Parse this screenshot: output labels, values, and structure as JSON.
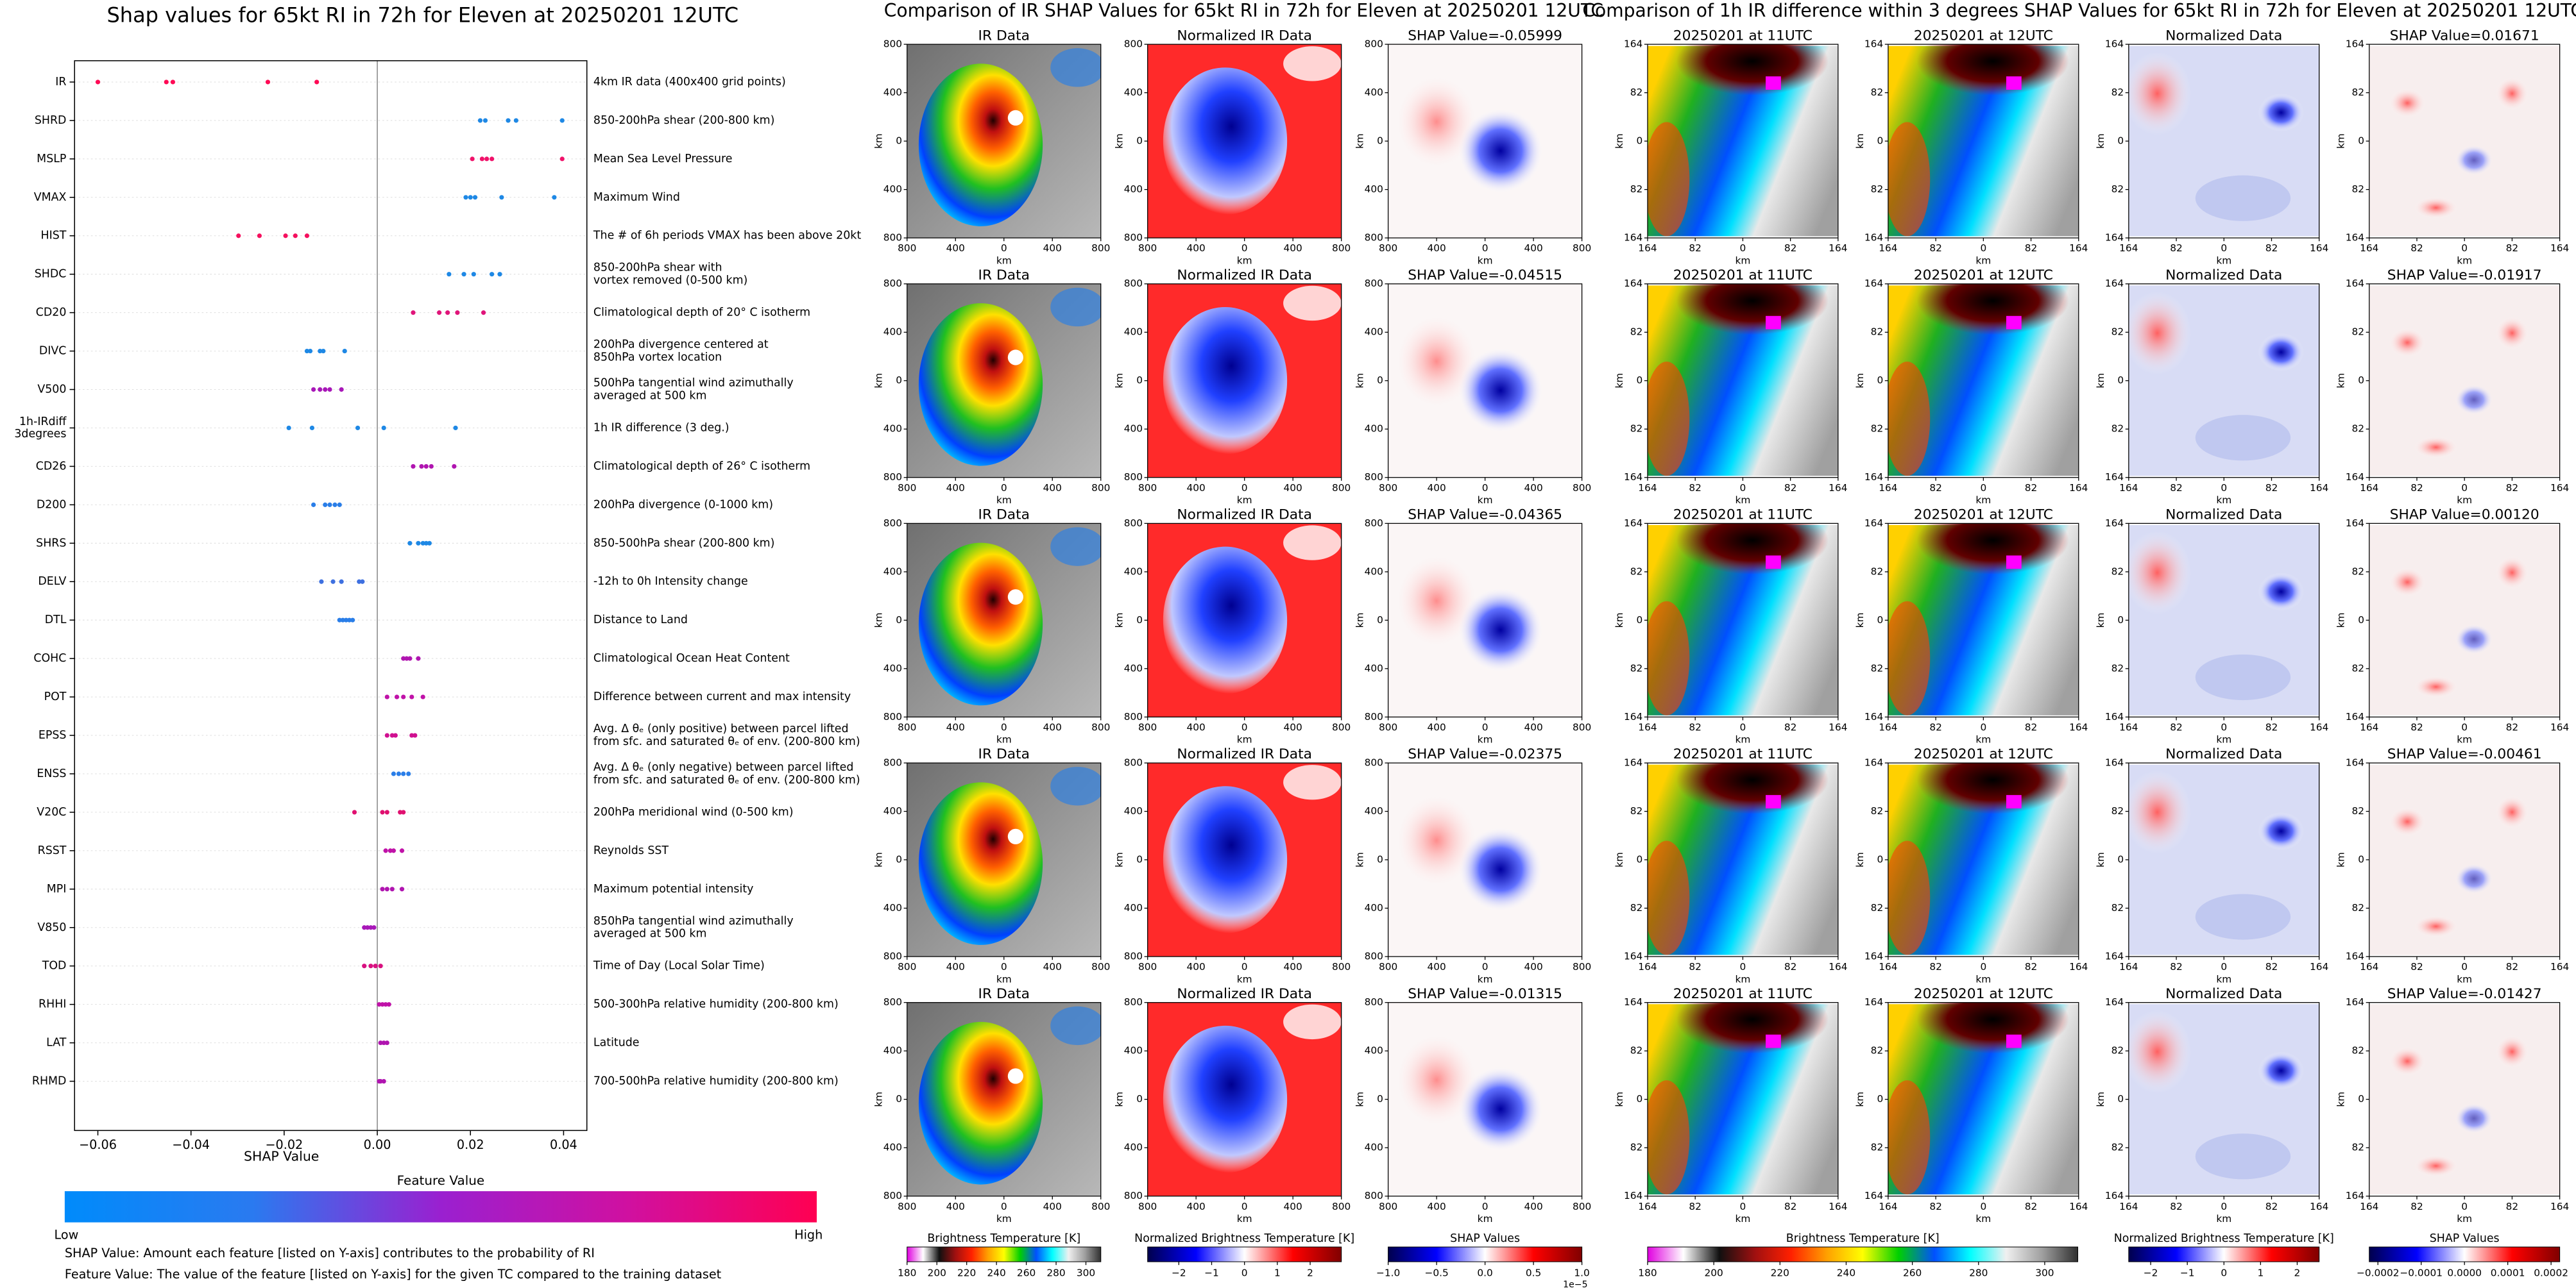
{
  "chart_data": [
    {
      "type": "strip",
      "title": "Shap values for 65kt RI in 72h for Eleven at 20250201 12UTC",
      "xlabel": "SHAP Value",
      "xlim": [
        -0.065,
        0.045
      ],
      "xticks": [
        {
          "value": -0.06,
          "label": "−0.06"
        },
        {
          "value": -0.04,
          "label": "−0.04"
        },
        {
          "value": -0.02,
          "label": "−0.02"
        },
        {
          "value": 0,
          "label": "0.00"
        },
        {
          "value": 0.02,
          "label": "0.02"
        },
        {
          "value": 0.04,
          "label": "0.04"
        }
      ],
      "categories": [
        "IR",
        "SHRD",
        "MSLP",
        "VMAX",
        "HIST",
        "SHDC",
        "CD20",
        "DIVC",
        "V500",
        [
          "1h-IRdiff",
          "3degrees"
        ],
        "CD26",
        "D200",
        "SHRS",
        "DELV",
        "DTL",
        "COHC",
        "POT",
        "EPSS",
        "ENSS",
        "V20C",
        "RSST",
        "MPI",
        "V850",
        "TOD",
        "RHHI",
        "LAT",
        "RHMD"
      ],
      "descriptions": [
        "4km IR data (400x400 grid points)",
        "850-200hPa shear (200-800 km)",
        "Mean Sea Level Pressure",
        "Maximum Wind",
        "The # of 6h periods VMAX has been above 20kt",
        [
          "850-200hPa shear with",
          "vortex removed (0-500 km)"
        ],
        "Climatological depth of 20° C isotherm",
        [
          "200hPa divergence centered at",
          "850hPa vortex location"
        ],
        [
          "500hPa tangential wind azimuthally",
          "averaged at 500 km"
        ],
        "1h IR difference (3 deg.)",
        "Climatological depth of 26° C isotherm",
        "200hPa divergence (0-1000 km)",
        "850-500hPa shear (200-800 km)",
        "-12h to 0h Intensity change",
        "Distance to Land",
        "Climatological Ocean Heat Content",
        "Difference between current and max intensity",
        [
          "Avg. Δ θₑ (only positive) between parcel lifted",
          "from sfc. and saturated θₑ of env. (200-800 km)"
        ],
        [
          "Avg. Δ θₑ (only negative) between parcel lifted",
          "from sfc. and saturated θₑ of env. (200-800 km)"
        ],
        "200hPa meridional wind (0-500 km)",
        "Reynolds SST",
        "Maximum potential intensity",
        [
          "850hPa tangential wind azimuthally",
          "averaged at 500 km"
        ],
        "Time of Day (Local Solar Time)",
        "500-300hPa relative humidity (200-800 km)",
        "Latitude",
        "700-500hPa relative humidity (200-800 km)"
      ],
      "values": [
        [
          -0.06,
          -0.0453,
          -0.0439,
          -0.0235,
          -0.013
        ],
        [
          0.0221,
          0.0232,
          0.0281,
          0.0298,
          0.0397
        ],
        [
          0.0204,
          0.0225,
          0.0235,
          0.0246,
          0.0397
        ],
        [
          0.019,
          0.02,
          0.021,
          0.0267,
          0.038
        ],
        [
          -0.0298,
          -0.0253,
          -0.0197,
          -0.0176,
          -0.0151
        ],
        [
          0.0154,
          0.0186,
          0.0207,
          0.0246,
          0.0263
        ],
        [
          0.0077,
          0.0133,
          0.0151,
          0.0172,
          0.0228
        ],
        [
          -0.0151,
          -0.0144,
          -0.0123,
          -0.0116,
          -0.007
        ],
        [
          -0.0137,
          -0.0123,
          -0.0112,
          -0.0102,
          -0.0077
        ],
        [
          -0.019,
          -0.014,
          -0.0042,
          0.0014,
          0.0168
        ],
        [
          0.0077,
          0.0095,
          0.0105,
          0.0116,
          0.0165
        ],
        [
          -0.0137,
          -0.0112,
          -0.0102,
          -0.0091,
          -0.0081
        ],
        [
          0.007,
          0.0088,
          0.0098,
          0.0105,
          0.0112
        ],
        [
          -0.012,
          -0.0095,
          -0.0077,
          -0.0039,
          -0.0032
        ],
        [
          -0.0081,
          -0.0074,
          -0.0067,
          -0.006,
          -0.0053
        ],
        [
          0.0056,
          0.0063,
          0.007,
          0.0088
        ],
        [
          0.0021,
          0.0042,
          0.0056,
          0.0074,
          0.0098
        ],
        [
          0.0021,
          0.0032,
          0.0039,
          0.0074,
          0.0081
        ],
        [
          0.0035,
          0.0046,
          0.0056,
          0.0067
        ],
        [
          -0.0049,
          0.0011,
          0.0021,
          0.0049,
          0.0056
        ],
        [
          0.0018,
          0.0028,
          0.0035,
          0.0053
        ],
        [
          0.0011,
          0.0021,
          0.0032,
          0.0053
        ],
        [
          -0.0028,
          -0.0021,
          -0.0014,
          -0.0007
        ],
        [
          -0.0028,
          -0.0014,
          -0.0004,
          0.0007
        ],
        [
          0.0004,
          0.0011,
          0.0018,
          0.0025
        ],
        [
          0.0007,
          0.0014,
          0.0021
        ],
        [
          0.0004,
          0.0007,
          0.0014
        ]
      ],
      "colors": [
        "#ff0a55",
        "#1e88e5",
        "#f0126a",
        "#1e88e5",
        "#f5105e",
        "#1e88e5",
        "#e0157a",
        "#1e88e5",
        "#a818b8",
        "#1e88e5",
        "#b015b0",
        "#2a7ee8",
        "#1e88e5",
        "#3e70e0",
        "#2a7ee8",
        "#b015b0",
        "#c012a8",
        "#d01090",
        "#2a7ee8",
        "#e01070",
        "#c012a8",
        "#b015b0",
        "#a818b8",
        "#d81080",
        "#c012a8",
        "#b015b0",
        "#b015b0"
      ],
      "colorbar": {
        "title": "Feature Value",
        "low_label": "Low",
        "high_label": "High",
        "colors": [
          "#008bfb",
          "#2a7af0",
          "#9a20d0",
          "#d010a0",
          "#ff0052"
        ]
      },
      "notes": [
        "SHAP Value: Amount each feature [listed on Y-axis] contributes to the probability of RI",
        "Feature Value: The value of the feature [listed on Y-axis] for the given TC compared to the training dataset"
      ]
    },
    {
      "type": "image-grid",
      "title": "Comparison of IR SHAP Values for 65kt RI in 72h for Eleven at 20250201 12UTC",
      "panel_titles": [
        "IR Data",
        "Normalized IR Data"
      ],
      "shap_titles": [
        "SHAP Value=-0.05999",
        "SHAP Value=-0.04515",
        "SHAP Value=-0.04365",
        "SHAP Value=-0.02375",
        "SHAP Value=-0.01315"
      ],
      "xlabel": "km",
      "ylabel": "km",
      "xlim": [
        -800,
        800
      ],
      "ylim": [
        -800,
        800
      ],
      "xticks": [
        {
          "value": -800,
          "label": "800"
        },
        {
          "value": -400,
          "label": "400"
        },
        0,
        400,
        800
      ],
      "yticks": [
        {
          "value": -800,
          "label": "800"
        },
        {
          "value": -400,
          "label": "400"
        },
        0,
        400,
        800
      ],
      "colorbars": [
        {
          "label": "Brightness Temperature [K]",
          "lim": [
            180,
            310
          ],
          "ticks": [
            180,
            200,
            220,
            240,
            260,
            280,
            300
          ],
          "colors": [
            "#e000e0",
            "#ffffff",
            "#101010",
            "#a01010",
            "#ff2000",
            "#ffa000",
            "#ffff00",
            "#00d000",
            "#0050ff",
            "#00ffff",
            "#f0f0f0",
            "#a0a0a0",
            "#303030"
          ]
        },
        {
          "label": "Normalized Brightness Temperature [K]",
          "lim": [
            -2.95,
            2.95
          ],
          "ticks": [
            {
              "value": -2,
              "label": "−2"
            },
            {
              "value": -1,
              "label": "−1"
            },
            0,
            1,
            2
          ],
          "colors": [
            "#00004d",
            "#0000ff",
            "#ffffff",
            "#ff0000",
            "#800000"
          ]
        },
        {
          "label": "SHAP Values",
          "lim": [
            -1e-05,
            1e-05
          ],
          "ticks": [
            {
              "value": -1e-05,
              "label": "−1.0"
            },
            {
              "value": -5e-06,
              "label": "−0.5"
            },
            {
              "value": 0,
              "label": "0.0"
            },
            {
              "value": 5e-06,
              "label": "0.5"
            },
            {
              "value": 1e-05,
              "label": "1.0"
            }
          ],
          "offset_text": "1e−5",
          "colors": [
            "#00004d",
            "#0000ff",
            "#ffffff",
            "#ff0000",
            "#800000"
          ]
        }
      ]
    },
    {
      "type": "image-grid",
      "title": "Comparison of 1h IR difference within 3 degrees SHAP Values for 65kt RI in 72h for Eleven at 20250201 12UTC",
      "panel_titles": [
        "20250201 at 11UTC",
        "20250201 at 12UTC",
        "Normalized Data"
      ],
      "shap_titles": [
        "SHAP Value=0.01671",
        "SHAP Value=-0.01917",
        "SHAP Value=0.00120",
        "SHAP Value=-0.00461",
        "SHAP Value=-0.01427"
      ],
      "xlabel": "km",
      "ylabel": "km",
      "xlim": [
        -164,
        164
      ],
      "ylim": [
        -164,
        164
      ],
      "xticks": [
        {
          "value": -164,
          "label": "164"
        },
        {
          "value": -82,
          "label": "82"
        },
        0,
        82,
        164
      ],
      "yticks": [
        {
          "value": -164,
          "label": "164"
        },
        {
          "value": -82,
          "label": "82"
        },
        0,
        82,
        164
      ],
      "colorbars": [
        {
          "label": "Brightness Temperature [K]",
          "lim": [
            180,
            310
          ],
          "ticks": [
            180,
            200,
            220,
            240,
            260,
            280,
            300
          ],
          "colors": [
            "#e000e0",
            "#ffffff",
            "#101010",
            "#a01010",
            "#ff2000",
            "#ffa000",
            "#ffff00",
            "#00d000",
            "#0050ff",
            "#00ffff",
            "#f0f0f0",
            "#a0a0a0",
            "#303030"
          ]
        },
        {
          "label": "Normalized Brightness Temperature [K]",
          "lim": [
            -2.6,
            2.6
          ],
          "ticks": [
            {
              "value": -2,
              "label": "−2"
            },
            {
              "value": -1,
              "label": "−1"
            },
            0,
            1,
            2
          ],
          "colors": [
            "#00004d",
            "#0000ff",
            "#ffffff",
            "#ff0000",
            "#800000"
          ]
        },
        {
          "label": "SHAP Values",
          "lim": [
            -0.00022,
            0.00022
          ],
          "ticks": [
            {
              "value": -0.0002,
              "label": "−0.0002"
            },
            {
              "value": -0.0001,
              "label": "−0.0001"
            },
            {
              "value": 0,
              "label": "0.0000"
            },
            {
              "value": 0.0001,
              "label": "0.0001"
            },
            {
              "value": 0.0002,
              "label": "0.0002"
            }
          ],
          "colors": [
            "#00004d",
            "#0000ff",
            "#ffffff",
            "#ff0000",
            "#800000"
          ]
        }
      ]
    }
  ]
}
